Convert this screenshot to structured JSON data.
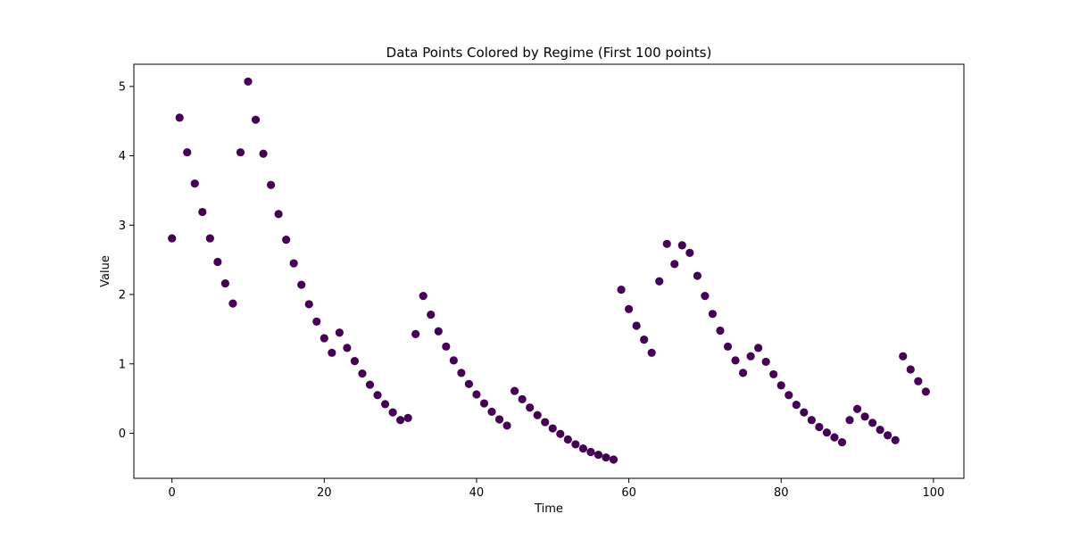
{
  "chart_data": {
    "type": "scatter",
    "title": "Data Points Colored by Regime (First 100 points)",
    "xlabel": "Time",
    "ylabel": "Value",
    "xlim": [
      -5,
      104
    ],
    "ylim": [
      -0.65,
      5.32
    ],
    "xticks": [
      0,
      20,
      40,
      60,
      80,
      100
    ],
    "yticks": [
      0,
      1,
      2,
      3,
      4,
      5
    ],
    "grid": false,
    "legend": "none",
    "marker_color": "#440154",
    "x": [
      0,
      1,
      2,
      3,
      4,
      5,
      6,
      7,
      8,
      9,
      10,
      11,
      12,
      13,
      14,
      15,
      16,
      17,
      18,
      19,
      20,
      21,
      22,
      23,
      24,
      25,
      26,
      27,
      28,
      29,
      30,
      31,
      32,
      33,
      34,
      35,
      36,
      37,
      38,
      39,
      40,
      41,
      42,
      43,
      44,
      45,
      46,
      47,
      48,
      49,
      50,
      51,
      52,
      53,
      54,
      55,
      56,
      57,
      58,
      59,
      60,
      61,
      62,
      63,
      64,
      65,
      66,
      67,
      68,
      69,
      70,
      71,
      72,
      73,
      74,
      75,
      76,
      77,
      78,
      79,
      80,
      81,
      82,
      83,
      84,
      85,
      86,
      87,
      88,
      89,
      90,
      91,
      92,
      93,
      94,
      95,
      96,
      97,
      98,
      99
    ],
    "y": [
      2.81,
      4.55,
      4.05,
      3.6,
      3.19,
      2.81,
      2.47,
      2.16,
      1.87,
      4.05,
      5.07,
      4.52,
      4.03,
      3.58,
      3.16,
      2.79,
      2.45,
      2.14,
      1.86,
      1.61,
      1.37,
      1.16,
      1.45,
      1.23,
      1.04,
      0.86,
      0.7,
      0.55,
      0.42,
      0.3,
      0.19,
      0.22,
      1.43,
      1.98,
      1.71,
      1.47,
      1.25,
      1.05,
      0.87,
      0.71,
      0.56,
      0.43,
      0.31,
      0.2,
      0.11,
      0.61,
      0.49,
      0.37,
      0.26,
      0.16,
      0.07,
      -0.01,
      -0.09,
      -0.16,
      -0.22,
      -0.27,
      -0.31,
      -0.35,
      -0.38,
      2.07,
      1.79,
      1.55,
      1.35,
      1.16,
      2.19,
      2.73,
      2.44,
      2.71,
      2.6,
      2.27,
      1.98,
      1.72,
      1.48,
      1.25,
      1.05,
      0.87,
      1.11,
      1.23,
      1.03,
      0.85,
      0.69,
      0.55,
      0.41,
      0.3,
      0.19,
      0.09,
      0.01,
      -0.06,
      -0.13,
      0.19,
      0.35,
      0.24,
      0.15,
      0.05,
      -0.03,
      -0.1,
      1.11,
      0.92,
      0.75,
      0.6
    ]
  }
}
